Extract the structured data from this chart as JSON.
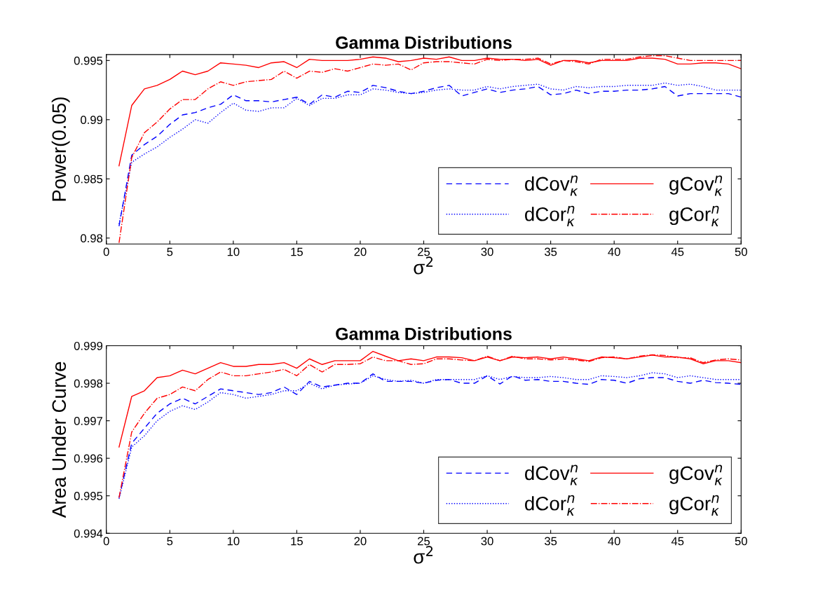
{
  "chart_data": [
    {
      "type": "line",
      "title": "Gamma Distributions",
      "xlabel": "σ$^{2}$",
      "ylabel": "Power(0.05)",
      "x": [
        1,
        2,
        3,
        4,
        5,
        6,
        7,
        8,
        9,
        10,
        11,
        12,
        13,
        14,
        15,
        16,
        17,
        18,
        19,
        20,
        21,
        22,
        23,
        24,
        25,
        26,
        27,
        28,
        29,
        30,
        31,
        32,
        33,
        34,
        35,
        36,
        37,
        38,
        39,
        40,
        41,
        42,
        43,
        44,
        45,
        46,
        47,
        48,
        49,
        50
      ],
      "xlim": [
        0,
        50
      ],
      "xticks": [
        0,
        5,
        10,
        15,
        20,
        25,
        30,
        35,
        40,
        45,
        50
      ],
      "ylim": [
        0.9795,
        0.9955
      ],
      "yticks": [
        0.98,
        0.985,
        0.99,
        0.995
      ],
      "grid": false,
      "legend": "bottom right",
      "series": [
        {
          "name": "dCov$^{n}$$_{κ}$",
          "color": "#0000ff",
          "line_style": "dashed",
          "values": [
            0.981,
            0.987,
            0.9879,
            0.9886,
            0.9896,
            0.9904,
            0.9906,
            0.991,
            0.9913,
            0.9921,
            0.9916,
            0.9916,
            0.9915,
            0.9917,
            0.9919,
            0.9913,
            0.9921,
            0.9919,
            0.9924,
            0.9923,
            0.9929,
            0.9927,
            0.9924,
            0.9922,
            0.9924,
            0.9927,
            0.9929,
            0.992,
            0.9923,
            0.9926,
            0.9923,
            0.9925,
            0.9926,
            0.9928,
            0.9921,
            0.9922,
            0.9925,
            0.9922,
            0.9924,
            0.9924,
            0.9925,
            0.9925,
            0.9926,
            0.9928,
            0.992,
            0.9922,
            0.9922,
            0.9922,
            0.9922,
            0.9919
          ]
        },
        {
          "name": "dCor$^{n}$$_{κ}$",
          "color": "#0000ff",
          "line_style": "dotted",
          "values": [
            0.9812,
            0.9864,
            0.9871,
            0.9877,
            0.9885,
            0.9892,
            0.99,
            0.9897,
            0.9906,
            0.9914,
            0.9908,
            0.9907,
            0.991,
            0.991,
            0.9918,
            0.9912,
            0.9918,
            0.9918,
            0.9921,
            0.9921,
            0.9926,
            0.9925,
            0.9923,
            0.9922,
            0.9923,
            0.9925,
            0.9926,
            0.9925,
            0.9925,
            0.9928,
            0.9926,
            0.9928,
            0.9929,
            0.993,
            0.9926,
            0.9925,
            0.9928,
            0.9927,
            0.9928,
            0.9928,
            0.9929,
            0.9929,
            0.9929,
            0.9931,
            0.9929,
            0.993,
            0.9928,
            0.9925,
            0.9925,
            0.9925
          ]
        },
        {
          "name": "gCov$^{n}$$_{κ}$",
          "color": "#ff0000",
          "line_style": "solid",
          "values": [
            0.9861,
            0.9912,
            0.9926,
            0.9929,
            0.9934,
            0.9941,
            0.9938,
            0.9941,
            0.9948,
            0.9947,
            0.9946,
            0.9944,
            0.9948,
            0.9949,
            0.9944,
            0.9951,
            0.995,
            0.995,
            0.995,
            0.9951,
            0.9953,
            0.9952,
            0.9949,
            0.995,
            0.9952,
            0.9951,
            0.9953,
            0.995,
            0.995,
            0.9952,
            0.9951,
            0.9951,
            0.995,
            0.9951,
            0.9946,
            0.995,
            0.995,
            0.9948,
            0.995,
            0.995,
            0.995,
            0.9952,
            0.9952,
            0.9951,
            0.9947,
            0.9947,
            0.9948,
            0.9948,
            0.9947,
            0.9943
          ]
        },
        {
          "name": "gCor$^{n}$$_{κ}$",
          "color": "#ff0000",
          "line_style": "dashdot",
          "values": [
            0.9796,
            0.9868,
            0.9889,
            0.9898,
            0.9909,
            0.9917,
            0.9917,
            0.9926,
            0.9932,
            0.9929,
            0.9932,
            0.9933,
            0.9934,
            0.9941,
            0.9935,
            0.9941,
            0.994,
            0.9943,
            0.9941,
            0.9944,
            0.9947,
            0.9946,
            0.9947,
            0.9942,
            0.9948,
            0.9949,
            0.9949,
            0.9948,
            0.9947,
            0.9951,
            0.995,
            0.9951,
            0.9951,
            0.9952,
            0.9947,
            0.995,
            0.9949,
            0.9947,
            0.9951,
            0.9951,
            0.9951,
            0.9953,
            0.9954,
            0.9954,
            0.9952,
            0.995,
            0.995,
            0.995,
            0.995,
            0.995
          ]
        }
      ]
    },
    {
      "type": "line",
      "title": "Gamma Distributions",
      "xlabel": "σ$^{2}$",
      "ylabel": "Area Under Curve",
      "x": [
        1,
        2,
        3,
        4,
        5,
        6,
        7,
        8,
        9,
        10,
        11,
        12,
        13,
        14,
        15,
        16,
        17,
        18,
        19,
        20,
        21,
        22,
        23,
        24,
        25,
        26,
        27,
        28,
        29,
        30,
        31,
        32,
        33,
        34,
        35,
        36,
        37,
        38,
        39,
        40,
        41,
        42,
        43,
        44,
        45,
        46,
        47,
        48,
        49,
        50
      ],
      "xlim": [
        0,
        50
      ],
      "xticks": [
        0,
        5,
        10,
        15,
        20,
        25,
        30,
        35,
        40,
        45,
        50
      ],
      "ylim": [
        0.994,
        0.999
      ],
      "yticks": [
        0.994,
        0.995,
        0.996,
        0.997,
        0.998,
        0.999
      ],
      "grid": false,
      "legend": "bottom right",
      "series": [
        {
          "name": "dCov$^{n}$$_{κ}$",
          "color": "#0000ff",
          "line_style": "dashed",
          "values": [
            0.99495,
            0.9964,
            0.9968,
            0.9972,
            0.99745,
            0.9976,
            0.99745,
            0.99765,
            0.99785,
            0.9978,
            0.99775,
            0.9977,
            0.99775,
            0.9979,
            0.9977,
            0.99805,
            0.9979,
            0.99795,
            0.998,
            0.998,
            0.99825,
            0.99805,
            0.99805,
            0.99805,
            0.998,
            0.99808,
            0.9981,
            0.998,
            0.998,
            0.9982,
            0.99798,
            0.9982,
            0.99808,
            0.9981,
            0.99805,
            0.99805,
            0.998,
            0.99797,
            0.9981,
            0.99808,
            0.998,
            0.99812,
            0.99815,
            0.99815,
            0.99805,
            0.998,
            0.99808,
            0.99802,
            0.998,
            0.99797
          ]
        },
        {
          "name": "dCor$^{n}$$_{κ}$",
          "color": "#0000ff",
          "line_style": "dotted",
          "values": [
            0.99492,
            0.9963,
            0.9966,
            0.997,
            0.99725,
            0.9974,
            0.9973,
            0.9975,
            0.99775,
            0.9977,
            0.9976,
            0.99765,
            0.9977,
            0.9978,
            0.9978,
            0.998,
            0.99785,
            0.99795,
            0.99798,
            0.998,
            0.9982,
            0.9981,
            0.99805,
            0.99808,
            0.998,
            0.9981,
            0.9981,
            0.9981,
            0.9981,
            0.9982,
            0.9981,
            0.99818,
            0.99815,
            0.99815,
            0.99818,
            0.99815,
            0.9981,
            0.9981,
            0.9982,
            0.99818,
            0.99815,
            0.9982,
            0.99828,
            0.99825,
            0.99815,
            0.9982,
            0.99815,
            0.9981,
            0.9981,
            0.9981
          ]
        },
        {
          "name": "gCov$^{n}$$_{κ}$",
          "color": "#ff0000",
          "line_style": "solid",
          "values": [
            0.9963,
            0.99765,
            0.9978,
            0.99815,
            0.9982,
            0.99835,
            0.99825,
            0.9984,
            0.99855,
            0.99845,
            0.99845,
            0.9985,
            0.9985,
            0.99855,
            0.9984,
            0.99865,
            0.9985,
            0.9986,
            0.9986,
            0.9986,
            0.99885,
            0.99872,
            0.9986,
            0.99865,
            0.9986,
            0.9987,
            0.9987,
            0.99868,
            0.9986,
            0.9987,
            0.9986,
            0.9987,
            0.99868,
            0.9987,
            0.99865,
            0.9987,
            0.99865,
            0.9986,
            0.9987,
            0.99868,
            0.99865,
            0.9987,
            0.99875,
            0.9987,
            0.9987,
            0.99865,
            0.99852,
            0.9986,
            0.9986,
            0.99855
          ]
        },
        {
          "name": "gCor$^{n}$$_{κ}$",
          "color": "#ff0000",
          "line_style": "dashdot",
          "values": [
            0.99495,
            0.9967,
            0.9972,
            0.9976,
            0.9977,
            0.9979,
            0.9978,
            0.9981,
            0.9983,
            0.9982,
            0.9982,
            0.99825,
            0.9983,
            0.99837,
            0.9982,
            0.9985,
            0.9983,
            0.9985,
            0.9985,
            0.99852,
            0.9987,
            0.9986,
            0.9986,
            0.9985,
            0.99852,
            0.99865,
            0.99865,
            0.99862,
            0.9986,
            0.99872,
            0.9986,
            0.99872,
            0.99865,
            0.99865,
            0.99862,
            0.99865,
            0.99862,
            0.99858,
            0.99868,
            0.9987,
            0.99865,
            0.99872,
            0.99876,
            0.99874,
            0.99868,
            0.99868,
            0.99855,
            0.99862,
            0.99865,
            0.99862
          ]
        }
      ]
    }
  ]
}
